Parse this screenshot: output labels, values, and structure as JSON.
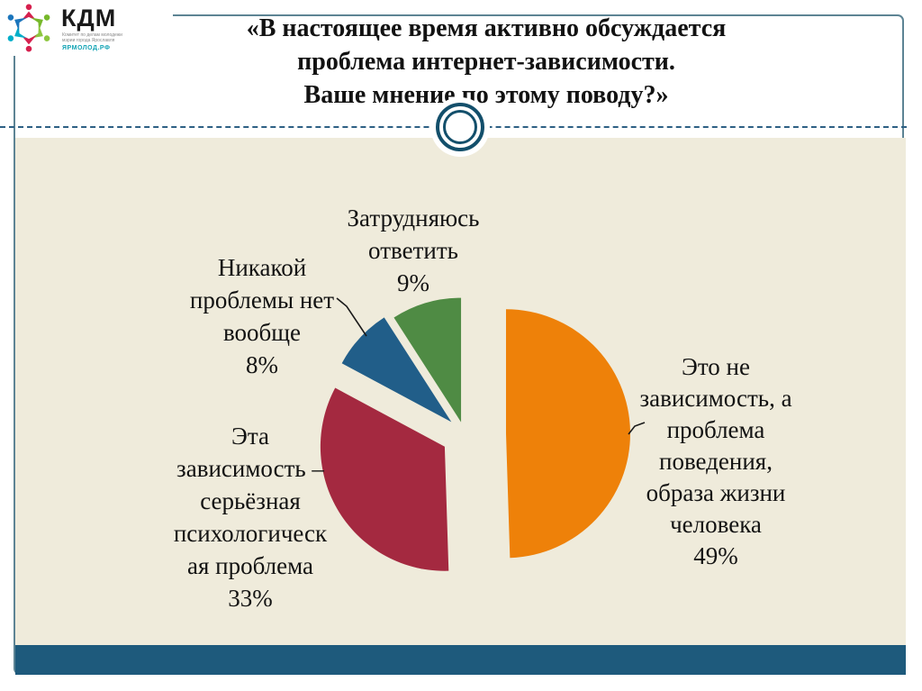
{
  "logo": {
    "brand": "КДМ",
    "subtext": "Комитет по делам молодежи\nмэрии города Ярославля",
    "site": "ЯРМОЛОД.РФ",
    "site_color": "#12a3b4"
  },
  "title": "«В настоящее время активно обсуждается\nпроблема интернет-зависимости.\nВаше мнение по этому поводу?»",
  "chart_data": {
    "type": "pie",
    "title": "«В настоящее время активно обсуждается проблема интернет-зависимости. Ваше мнение по этому поводу?»",
    "start_angle": "top",
    "direction": "clockwise",
    "exploded": true,
    "legend_position": "none",
    "slices": [
      {
        "label": "Это не зависимость, а проблема поведения, образа жизни человека",
        "value": 49,
        "pct_label": "49%",
        "color": "#ee8109",
        "callout": "Это не\nзависимость, а\nпроблема\nповедения,\nобраза жизни\nчеловека\n49%"
      },
      {
        "label": "Эта зависимость – серьёзная психологическая проблема",
        "value": 33,
        "pct_label": "33%",
        "color": "#a42940",
        "callout": "Эта\nзависимость –\nсерьёзная\nпсихологическ\nая проблема\n33%"
      },
      {
        "label": "Никакой проблемы нет вообще",
        "value": 8,
        "pct_label": "8%",
        "color": "#215e89",
        "callout": "Никакой\nпроблемы нет\nвообще\n8%"
      },
      {
        "label": "Затрудняюсь ответить",
        "value": 9,
        "pct_label": "9%",
        "color": "#4f8b44",
        "callout": "Затрудняюсь\nответить\n9%"
      }
    ],
    "colors": {
      "background_panel": "#efebdb",
      "footer_bar": "#1e5a7c",
      "frame": "#5d8494",
      "divider": "#2e6084",
      "ring": "#134f6b"
    }
  }
}
